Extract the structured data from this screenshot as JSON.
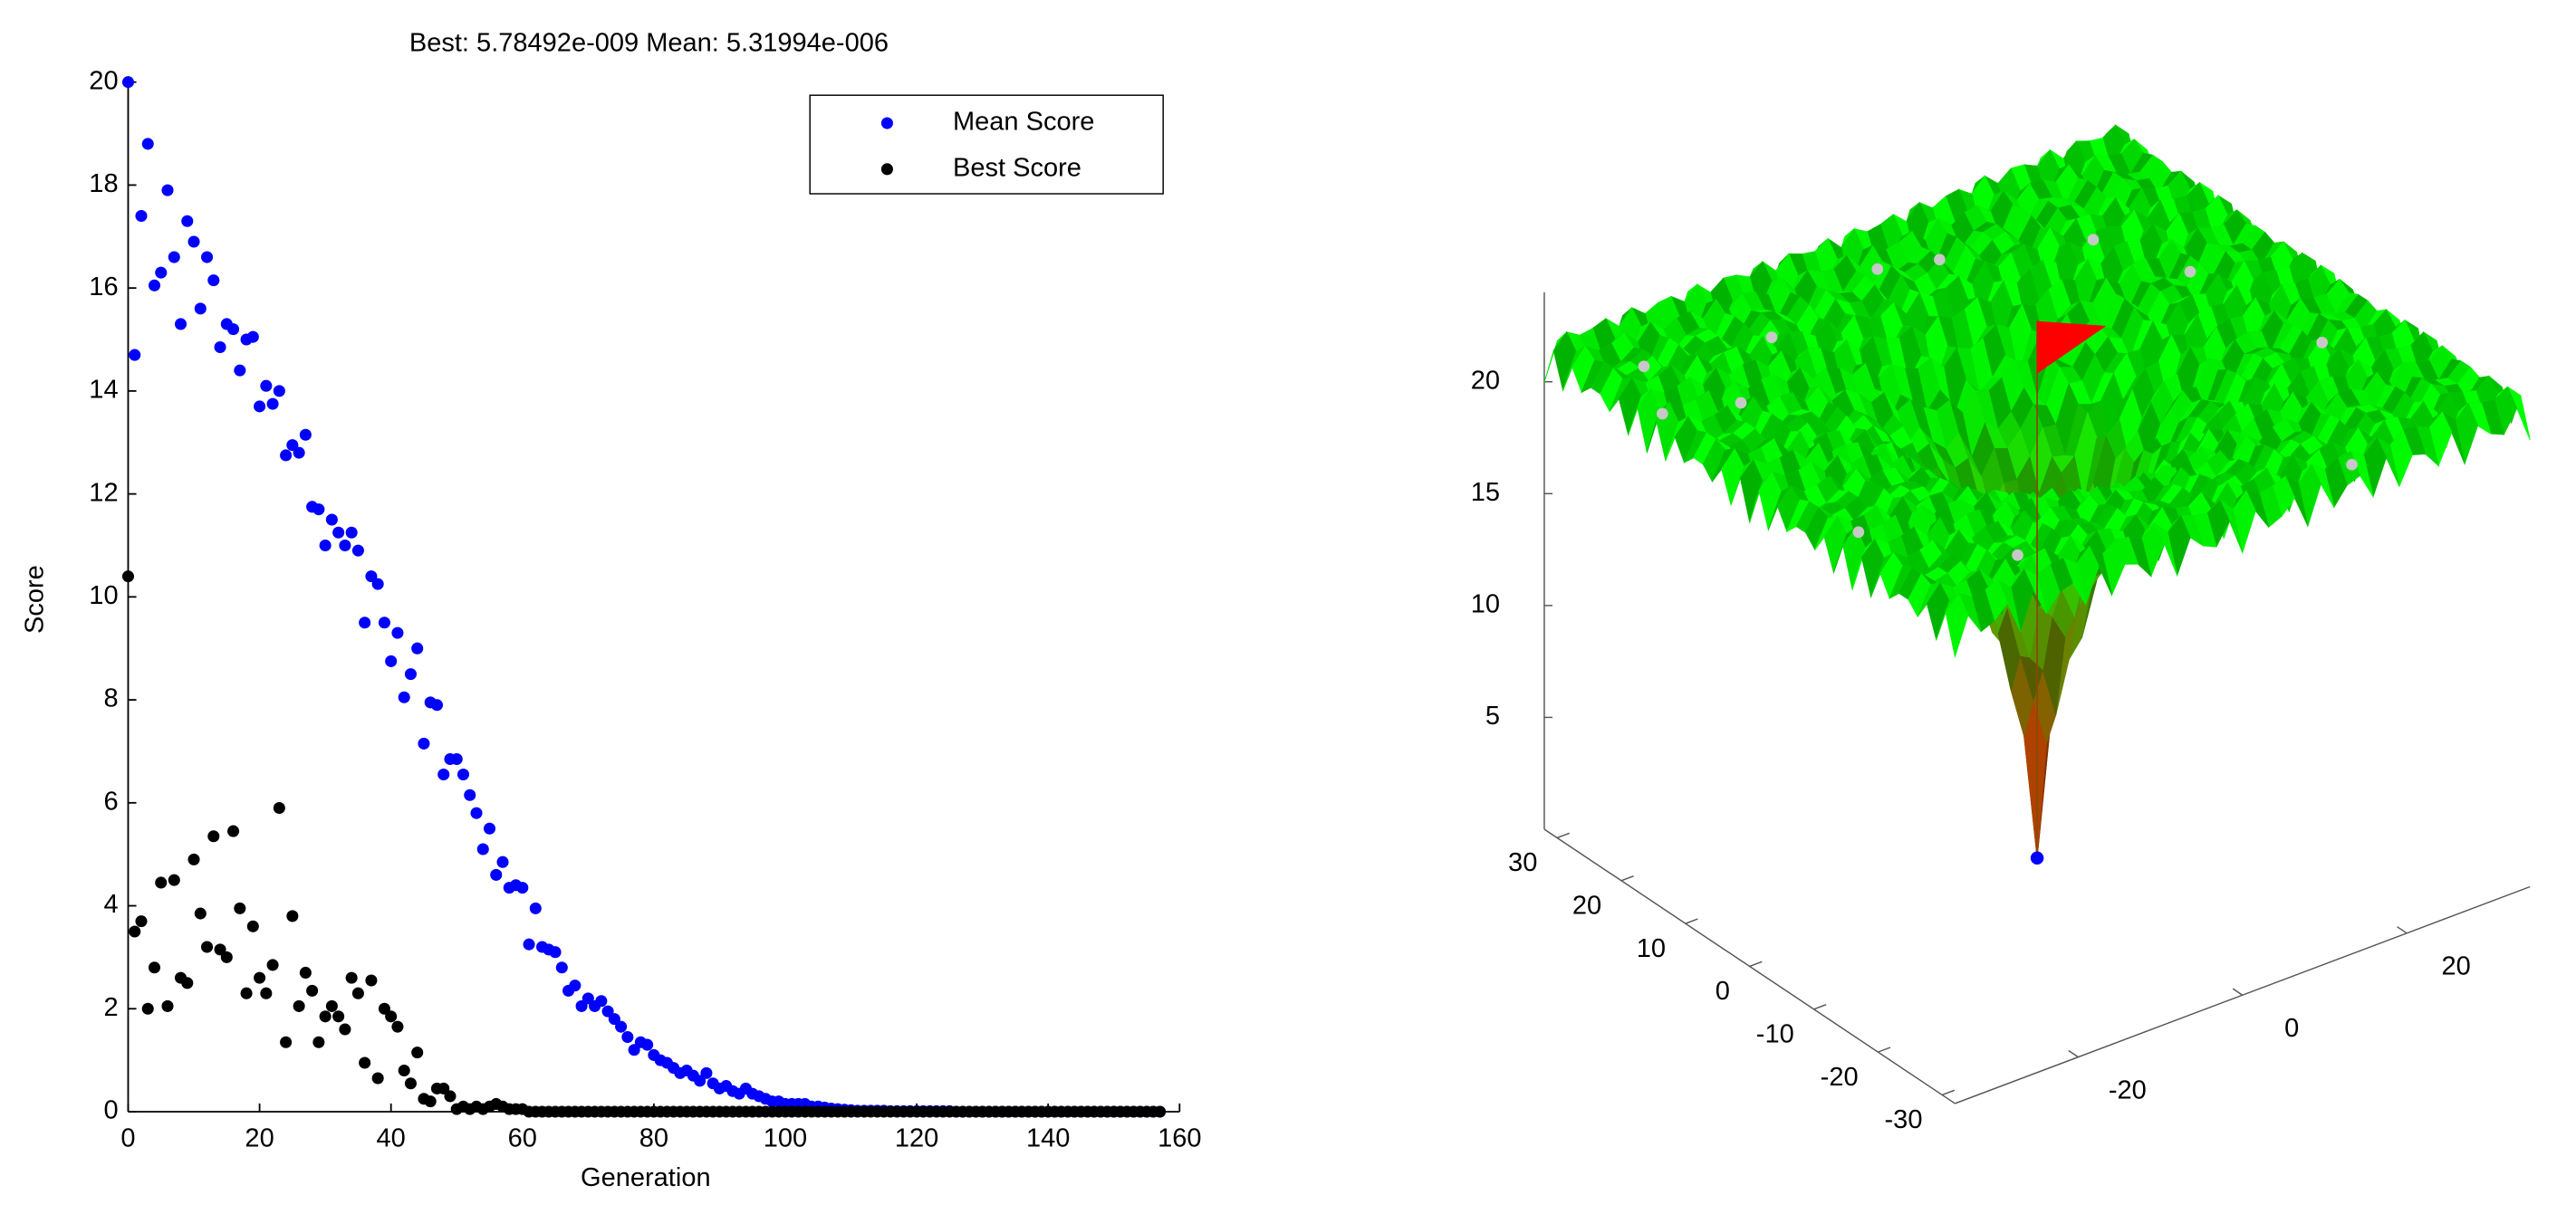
{
  "chart_data": [
    {
      "type": "scatter",
      "title": "Best: 5.78492e-009 Mean: 5.31994e-006",
      "xlabel": "Generation",
      "ylabel": "Score",
      "xlim": [
        0,
        160
      ],
      "xticks": [
        0,
        20,
        40,
        60,
        80,
        100,
        120,
        140,
        160
      ],
      "ylim": [
        0,
        20
      ],
      "yticks": [
        0,
        2,
        4,
        6,
        8,
        10,
        12,
        14,
        16,
        18,
        20
      ],
      "legend": "upper right",
      "x": [
        0,
        1,
        2,
        3,
        4,
        5,
        6,
        7,
        8,
        9,
        10,
        11,
        12,
        13,
        14,
        15,
        16,
        17,
        18,
        19,
        20,
        21,
        22,
        23,
        24,
        25,
        26,
        27,
        28,
        29,
        30,
        31,
        32,
        33,
        34,
        35,
        36,
        37,
        38,
        39,
        40,
        41,
        42,
        43,
        44,
        45,
        46,
        47,
        48,
        49,
        50,
        51,
        52,
        53,
        54,
        55,
        56,
        57,
        58,
        59,
        60,
        61,
        62,
        63,
        64,
        65,
        66,
        67,
        68,
        69,
        70,
        71,
        72,
        73,
        74,
        75,
        76,
        77,
        78,
        79,
        80,
        81,
        82,
        83,
        84,
        85,
        86,
        87,
        88,
        89,
        90,
        91,
        92,
        93,
        94,
        95,
        96,
        97,
        98,
        99,
        100,
        101,
        102,
        103,
        104,
        105,
        106,
        107,
        108,
        109,
        110,
        111,
        112,
        113,
        114,
        115,
        116,
        117,
        118,
        119,
        120,
        121,
        122,
        123,
        124,
        125,
        126,
        127,
        128,
        129,
        130,
        131,
        132,
        133,
        134,
        135,
        136,
        137,
        138,
        139,
        140,
        141,
        142,
        143,
        144,
        145,
        146,
        147,
        148,
        149,
        150,
        151,
        152,
        153,
        154,
        155,
        156,
        157
      ],
      "series": [
        {
          "name": "Mean Score",
          "color": "#0000ff",
          "values": [
            20,
            14.7,
            17.4,
            18.8,
            16.05,
            16.3,
            17.9,
            16.6,
            15.3,
            17.3,
            16.9,
            15.6,
            16.6,
            16.15,
            14.85,
            15.3,
            15.2,
            14.4,
            15.0,
            15.05,
            13.7,
            14.1,
            13.75,
            14.0,
            12.75,
            12.95,
            12.8,
            13.15,
            11.75,
            11.7,
            11.0,
            11.5,
            11.25,
            11.0,
            11.25,
            10.9,
            9.5,
            10.4,
            10.25,
            9.5,
            8.75,
            9.3,
            8.05,
            8.5,
            9.0,
            7.15,
            7.95,
            7.9,
            6.55,
            6.85,
            6.85,
            6.55,
            6.15,
            5.8,
            5.1,
            5.5,
            4.6,
            4.85,
            4.35,
            4.4,
            4.35,
            3.25,
            3.95,
            3.2,
            3.15,
            3.1,
            2.8,
            2.35,
            2.45,
            2.05,
            2.2,
            2.05,
            2.15,
            1.95,
            1.8,
            1.65,
            1.45,
            1.2,
            1.35,
            1.3,
            1.1,
            1.0,
            0.95,
            0.85,
            0.75,
            0.8,
            0.7,
            0.6,
            0.75,
            0.55,
            0.45,
            0.5,
            0.4,
            0.35,
            0.45,
            0.35,
            0.3,
            0.25,
            0.2,
            0.2,
            0.15,
            0.15,
            0.15,
            0.15,
            0.1,
            0.1,
            0.08,
            0.06,
            0.05,
            0.04,
            0.03,
            0.02,
            0.02,
            0.02,
            0.02,
            0.02,
            0.01,
            0.01,
            0.01,
            0.01,
            0.01,
            0.01,
            0.01,
            0.01,
            0.01,
            0.01,
            0,
            0,
            0,
            0,
            0,
            0,
            0,
            0,
            0,
            0,
            0,
            0,
            0,
            0,
            0,
            0,
            0,
            0,
            0,
            0,
            0,
            0,
            0,
            0,
            0,
            0,
            0,
            0,
            0,
            0,
            0,
            0
          ]
        },
        {
          "name": "Best Score",
          "color": "#000000",
          "values": [
            10.4,
            3.5,
            3.7,
            2.0,
            2.8,
            4.45,
            2.05,
            4.5,
            2.6,
            2.5,
            4.9,
            3.85,
            3.2,
            5.35,
            3.15,
            3.0,
            5.45,
            3.95,
            2.3,
            3.6,
            2.6,
            2.3,
            2.85,
            5.9,
            1.35,
            3.8,
            2.05,
            2.7,
            2.35,
            1.35,
            1.85,
            2.05,
            1.85,
            1.6,
            2.6,
            2.3,
            0.95,
            2.55,
            0.65,
            2.0,
            1.85,
            1.65,
            0.8,
            0.55,
            1.15,
            0.25,
            0.2,
            0.45,
            0.45,
            0.3,
            0.05,
            0.1,
            0.05,
            0.1,
            0.05,
            0.1,
            0.15,
            0.1,
            0.05,
            0.05,
            0.05,
            0,
            0,
            0,
            0,
            0,
            0,
            0,
            0,
            0,
            0,
            0,
            0,
            0,
            0,
            0,
            0,
            0,
            0,
            0,
            0,
            0,
            0,
            0,
            0,
            0,
            0,
            0,
            0,
            0,
            0,
            0,
            0,
            0,
            0,
            0,
            0,
            0,
            0,
            0,
            0,
            0,
            0,
            0,
            0,
            0,
            0,
            0,
            0,
            0,
            0,
            0,
            0,
            0,
            0,
            0,
            0,
            0,
            0,
            0,
            0,
            0,
            0,
            0,
            0,
            0,
            0,
            0,
            0,
            0,
            0,
            0,
            0,
            0,
            0,
            0,
            0,
            0,
            0,
            0,
            0,
            0,
            0,
            0,
            0,
            0,
            0,
            0,
            0,
            0,
            0,
            0,
            0,
            0,
            0,
            0,
            0,
            0
          ]
        }
      ]
    },
    {
      "type": "surface",
      "xlim": [
        -35,
        35
      ],
      "xticks": [
        -20,
        0,
        20
      ],
      "ylim": [
        -32,
        32
      ],
      "yticks": [
        -30,
        -20,
        -10,
        0,
        10,
        20,
        30
      ],
      "zlim": [
        0,
        24
      ],
      "zticks": [
        5,
        10,
        15,
        20
      ]
    }
  ]
}
